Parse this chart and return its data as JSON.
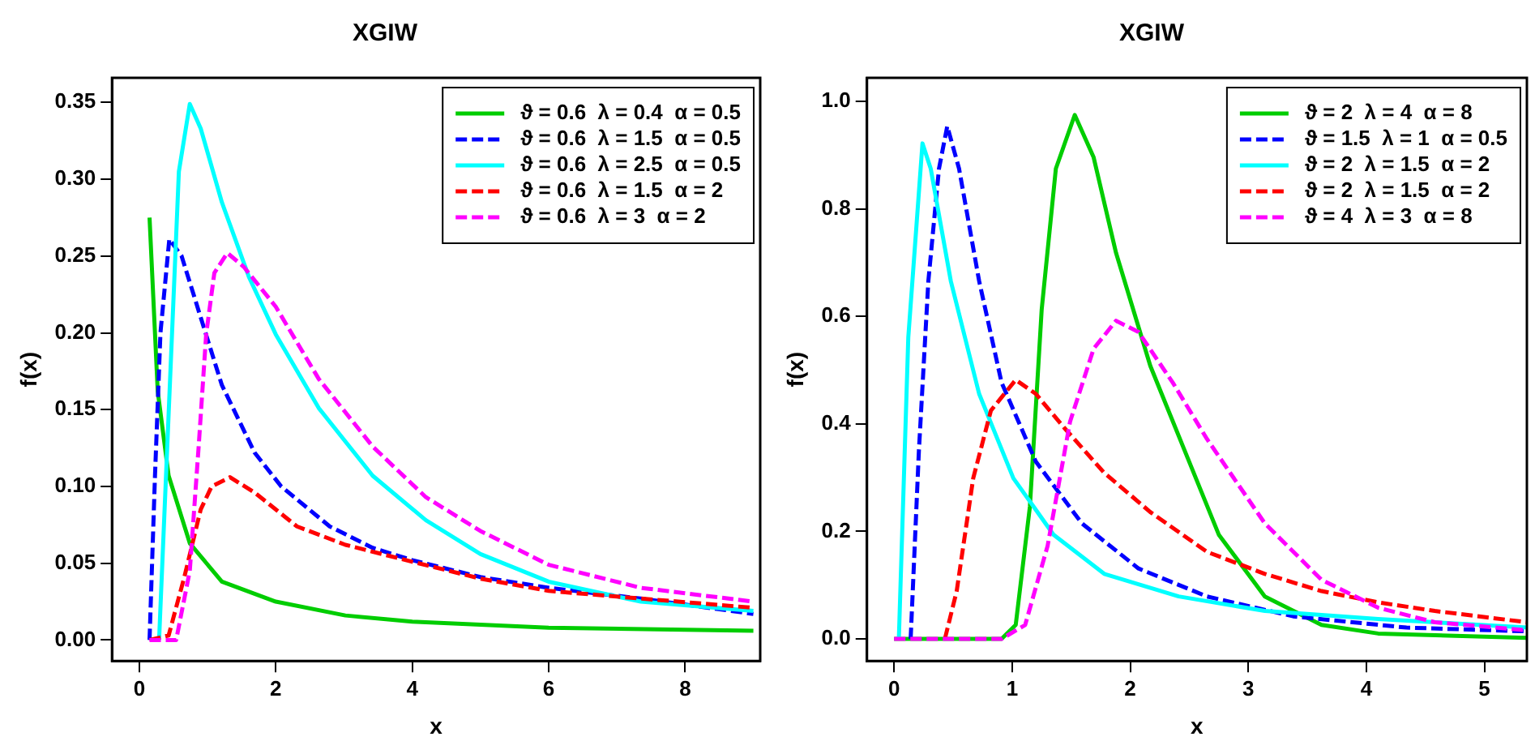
{
  "chart_data": [
    {
      "type": "line",
      "title": "XGIW",
      "xlabel": "x",
      "ylabel": "f(x)",
      "xlim": [
        -0.4,
        9.1
      ],
      "ylim": [
        -0.0136,
        0.366
      ],
      "xticks": [
        0,
        2,
        4,
        6,
        8
      ],
      "yticks": [
        {
          "value": 0,
          "label": "0.00"
        },
        {
          "value": 0.05,
          "label": "0.05"
        },
        {
          "value": 0.1,
          "label": "0.10"
        },
        {
          "value": 0.15,
          "label": "0.15"
        },
        {
          "value": 0.2,
          "label": "0.20"
        },
        {
          "value": 0.25,
          "label": "0.25"
        },
        {
          "value": 0.3,
          "label": "0.30"
        },
        {
          "value": 0.35,
          "label": "0.35"
        }
      ],
      "grid": false,
      "legend": "top right",
      "marker": "none",
      "series": [
        {
          "name": "ϑ = 0.6  λ = 0.4  α = 0.5",
          "color": "#00cd00",
          "line_style": "solid",
          "x": [
            0.15,
            0.27,
            0.43,
            0.74,
            1.21,
            2,
            3.02,
            4,
            6,
            9
          ],
          "values": [
            0.275,
            0.162,
            0.107,
            0.063,
            0.038,
            0.025,
            0.016,
            0.012,
            0.008,
            0.006
          ]
        },
        {
          "name": "ϑ = 0.6  λ = 1.5  α = 0.5",
          "color": "#0000ff",
          "line_style": "dashed",
          "x": [
            0.15,
            0.23,
            0.31,
            0.44,
            0.62,
            0.9,
            1.21,
            1.69,
            2.08,
            2.79,
            3.42,
            4,
            5,
            6,
            7.35,
            9
          ],
          "values": [
            0,
            0.107,
            0.2,
            0.261,
            0.25,
            0.21,
            0.166,
            0.122,
            0.1,
            0.074,
            0.06,
            0.052,
            0.041,
            0.034,
            0.027,
            0.017
          ]
        },
        {
          "name": "ϑ = 0.6  λ = 2.5  α = 0.5",
          "color": "#00ffff",
          "line_style": "solid",
          "x": [
            0.29,
            0.58,
            0.74,
            0.9,
            1.21,
            1.61,
            2,
            2.63,
            3.42,
            4.2,
            5,
            6,
            7.35,
            9
          ],
          "values": [
            0,
            0.305,
            0.349,
            0.333,
            0.285,
            0.236,
            0.199,
            0.151,
            0.107,
            0.078,
            0.056,
            0.038,
            0.025,
            0.019
          ]
        },
        {
          "name": "ϑ = 0.6  λ = 1.5  α = 2",
          "color": "#ff0000",
          "line_style": "dashed",
          "x": [
            0.15,
            0.43,
            0.66,
            0.9,
            1.06,
            1.33,
            1.69,
            2.31,
            3.02,
            4,
            5,
            6,
            7.35,
            9
          ],
          "values": [
            0,
            0.003,
            0.041,
            0.085,
            0.1,
            0.106,
            0.096,
            0.074,
            0.062,
            0.051,
            0.04,
            0.032,
            0.027,
            0.021
          ]
        },
        {
          "name": "ϑ = 0.6  λ = 3  α = 2",
          "color": "#ff00ff",
          "line_style": "dashed",
          "x": [
            0.15,
            0.54,
            0.74,
            0.87,
            0.98,
            1.1,
            1.29,
            1.53,
            2,
            2.63,
            3.42,
            4.2,
            5,
            6,
            7.35,
            9
          ],
          "values": [
            0,
            0,
            0.045,
            0.126,
            0.199,
            0.239,
            0.252,
            0.243,
            0.217,
            0.17,
            0.126,
            0.093,
            0.071,
            0.049,
            0.034,
            0.025
          ]
        }
      ]
    },
    {
      "type": "line",
      "title": "XGIW",
      "xlabel": "x",
      "ylabel": "f(x)",
      "xlim": [
        -0.23,
        5.36
      ],
      "ylim": [
        -0.041,
        1.044
      ],
      "xticks": [
        0,
        1,
        2,
        3,
        4,
        5
      ],
      "yticks": [
        {
          "value": 0,
          "label": "0.0"
        },
        {
          "value": 0.2,
          "label": "0.2"
        },
        {
          "value": 0.4,
          "label": "0.4"
        },
        {
          "value": 0.6,
          "label": "0.6"
        },
        {
          "value": 0.8,
          "label": "0.8"
        },
        {
          "value": 1,
          "label": "1.0"
        }
      ],
      "grid": false,
      "legend": "top right",
      "marker": "none",
      "series": [
        {
          "name": "ϑ = 2  λ = 4  α = 8",
          "color": "#00cd00",
          "line_style": "solid",
          "x": [
            0,
            0.91,
            1.03,
            1.15,
            1.25,
            1.37,
            1.53,
            1.69,
            1.88,
            2.17,
            2.46,
            2.75,
            3.14,
            3.62,
            4.1,
            5.36
          ],
          "values": [
            0,
            0,
            0.026,
            0.246,
            0.613,
            0.875,
            0.975,
            0.896,
            0.718,
            0.508,
            0.351,
            0.194,
            0.079,
            0.026,
            0.01,
            0.002
          ]
        },
        {
          "name": "ϑ = 1.5  λ = 1  α = 0.5",
          "color": "#0000ff",
          "line_style": "dashed",
          "x": [
            0.14,
            0.21,
            0.29,
            0.38,
            0.45,
            0.55,
            0.72,
            0.91,
            1.2,
            1.59,
            2.07,
            2.65,
            3.38,
            4.34,
            5.36
          ],
          "values": [
            0,
            0.351,
            0.666,
            0.875,
            0.954,
            0.875,
            0.666,
            0.477,
            0.33,
            0.215,
            0.131,
            0.079,
            0.042,
            0.021,
            0.014
          ]
        },
        {
          "name": "ϑ = 2  λ = 1.5  α = 2",
          "color": "#00ffff",
          "line_style": "solid",
          "x": [
            0.04,
            0.12,
            0.24,
            0.31,
            0.48,
            0.72,
            1.01,
            1.35,
            1.78,
            2.41,
            3.14,
            4.1,
            5.36
          ],
          "values": [
            0,
            0.561,
            0.922,
            0.875,
            0.666,
            0.456,
            0.299,
            0.194,
            0.121,
            0.079,
            0.052,
            0.037,
            0.021
          ]
        },
        {
          "name": "ϑ = 2  λ = 1.5  α = 2",
          "color": "#ff0000",
          "line_style": "dashed",
          "x": [
            0.43,
            0.53,
            0.67,
            0.82,
            1.03,
            1.2,
            1.44,
            1.78,
            2.17,
            2.65,
            3.14,
            3.62,
            4.1,
            4.58,
            5.36
          ],
          "values": [
            0,
            0.089,
            0.299,
            0.425,
            0.482,
            0.456,
            0.393,
            0.309,
            0.236,
            0.162,
            0.121,
            0.089,
            0.068,
            0.052,
            0.031
          ]
        },
        {
          "name": "ϑ = 4  λ = 3  α = 8",
          "color": "#ff00ff",
          "line_style": "dashed",
          "x": [
            0,
            0.91,
            1.11,
            1.3,
            1.49,
            1.69,
            1.88,
            2.07,
            2.36,
            2.65,
            3.14,
            3.62,
            4.1,
            4.58,
            5.36
          ],
          "values": [
            0,
            0,
            0.026,
            0.173,
            0.404,
            0.54,
            0.592,
            0.571,
            0.477,
            0.372,
            0.215,
            0.11,
            0.058,
            0.031,
            0.016
          ]
        }
      ]
    }
  ]
}
